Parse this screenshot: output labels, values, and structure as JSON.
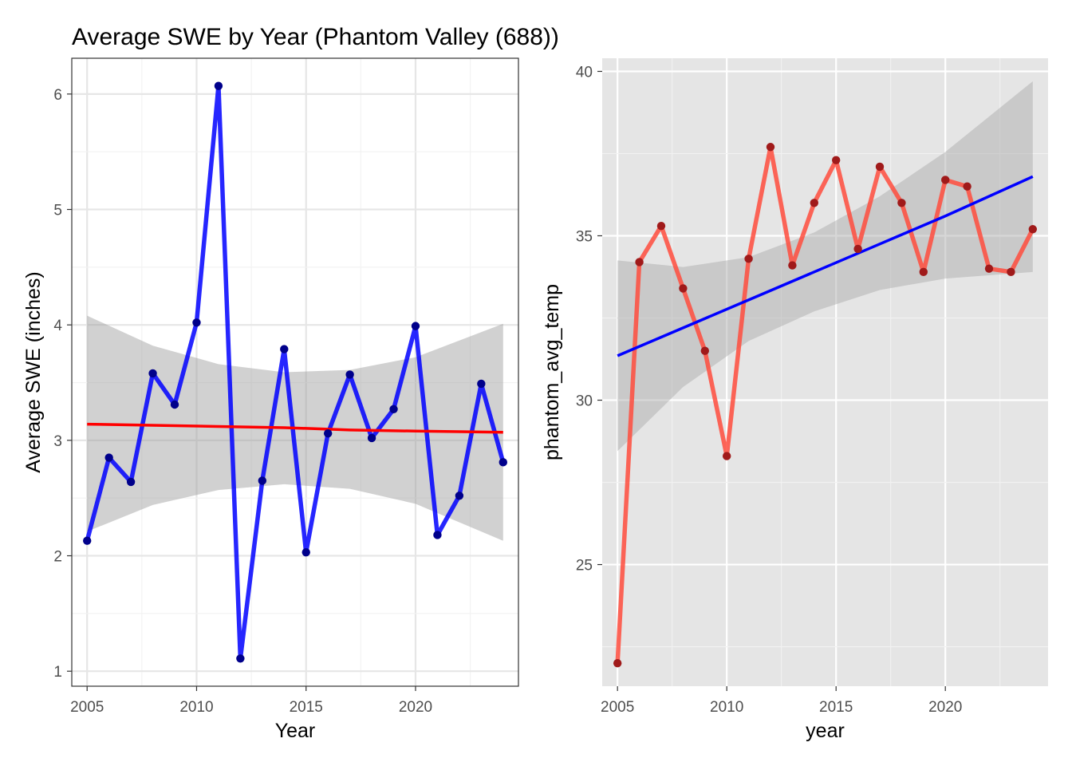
{
  "title": "Average SWE by Year (Phantom Valley (688))",
  "chart_data": [
    {
      "type": "line",
      "theme": "bw",
      "xlabel": "Year",
      "ylabel": "Average SWE (inches)",
      "xlim": [
        2004.3,
        2024.7
      ],
      "ylim": [
        0.87,
        6.31
      ],
      "x_ticks": [
        2005,
        2010,
        2015,
        2020
      ],
      "x_tick_labels": [
        "2005",
        "2010",
        "2015",
        "2020"
      ],
      "y_ticks": [
        1,
        2,
        3,
        4,
        5,
        6
      ],
      "y_tick_labels": [
        "1",
        "2",
        "3",
        "4",
        "5",
        "6"
      ],
      "grid": true,
      "line_color": "#0000ff",
      "point_color": "#00008b",
      "trend_color": "#ff0000",
      "band_color": "#999999",
      "series": [
        {
          "x": [
            2005,
            2006,
            2007,
            2008,
            2009,
            2010,
            2011,
            2012,
            2013,
            2014,
            2015,
            2016,
            2017,
            2018,
            2019,
            2020,
            2021,
            2022,
            2023,
            2024
          ],
          "values": [
            2.13,
            2.85,
            2.64,
            3.58,
            3.31,
            4.02,
            6.07,
            1.11,
            2.65,
            3.79,
            2.03,
            3.06,
            3.57,
            3.02,
            3.27,
            3.99,
            2.18,
            2.52,
            3.49,
            2.81
          ]
        }
      ],
      "trend": {
        "x": [
          2005,
          2008,
          2011,
          2014,
          2017,
          2020,
          2024
        ],
        "fit": [
          3.14,
          3.13,
          3.12,
          3.11,
          3.09,
          3.08,
          3.07
        ],
        "lower": [
          2.21,
          2.44,
          2.57,
          2.62,
          2.58,
          2.45,
          2.13
        ],
        "upper": [
          4.08,
          3.82,
          3.66,
          3.59,
          3.61,
          3.72,
          4.01
        ]
      }
    },
    {
      "type": "line",
      "theme": "gray",
      "xlabel": "year",
      "ylabel": "phantom_avg_temp",
      "xlim": [
        2004.3,
        2024.7
      ],
      "ylim": [
        21.3,
        40.4
      ],
      "x_ticks": [
        2005,
        2010,
        2015,
        2020
      ],
      "x_tick_labels": [
        "2005",
        "2010",
        "2015",
        "2020"
      ],
      "y_ticks": [
        25,
        30,
        35,
        40
      ],
      "y_tick_labels": [
        "25",
        "30",
        "35",
        "40"
      ],
      "grid": true,
      "line_color": "#ff4c3d",
      "line_color_alt": "#cd5c5c",
      "point_color": "#a01a1a",
      "trend_color": "#0000ff",
      "band_color": "#a6a6a6",
      "series": [
        {
          "x": [
            2005,
            2006,
            2007,
            2008,
            2009,
            2010,
            2011,
            2012,
            2013,
            2014,
            2015,
            2016,
            2017,
            2018,
            2019,
            2020,
            2021,
            2022,
            2023,
            2024
          ],
          "values": [
            22.0,
            34.2,
            35.3,
            33.4,
            31.5,
            28.3,
            34.3,
            37.7,
            34.1,
            36.0,
            37.3,
            34.6,
            37.1,
            36.0,
            33.9,
            36.7,
            36.5,
            34.0,
            33.9,
            35.2
          ]
        }
      ],
      "trend": {
        "x": [
          2005,
          2008,
          2011,
          2014,
          2017,
          2020,
          2024
        ],
        "fit": [
          31.35,
          32.2,
          33.05,
          33.9,
          34.75,
          35.6,
          36.8
        ],
        "lower": [
          28.45,
          30.4,
          31.8,
          32.7,
          33.35,
          33.7,
          33.9
        ],
        "upper": [
          34.25,
          34.05,
          34.35,
          35.1,
          36.2,
          37.55,
          39.7
        ]
      }
    }
  ]
}
